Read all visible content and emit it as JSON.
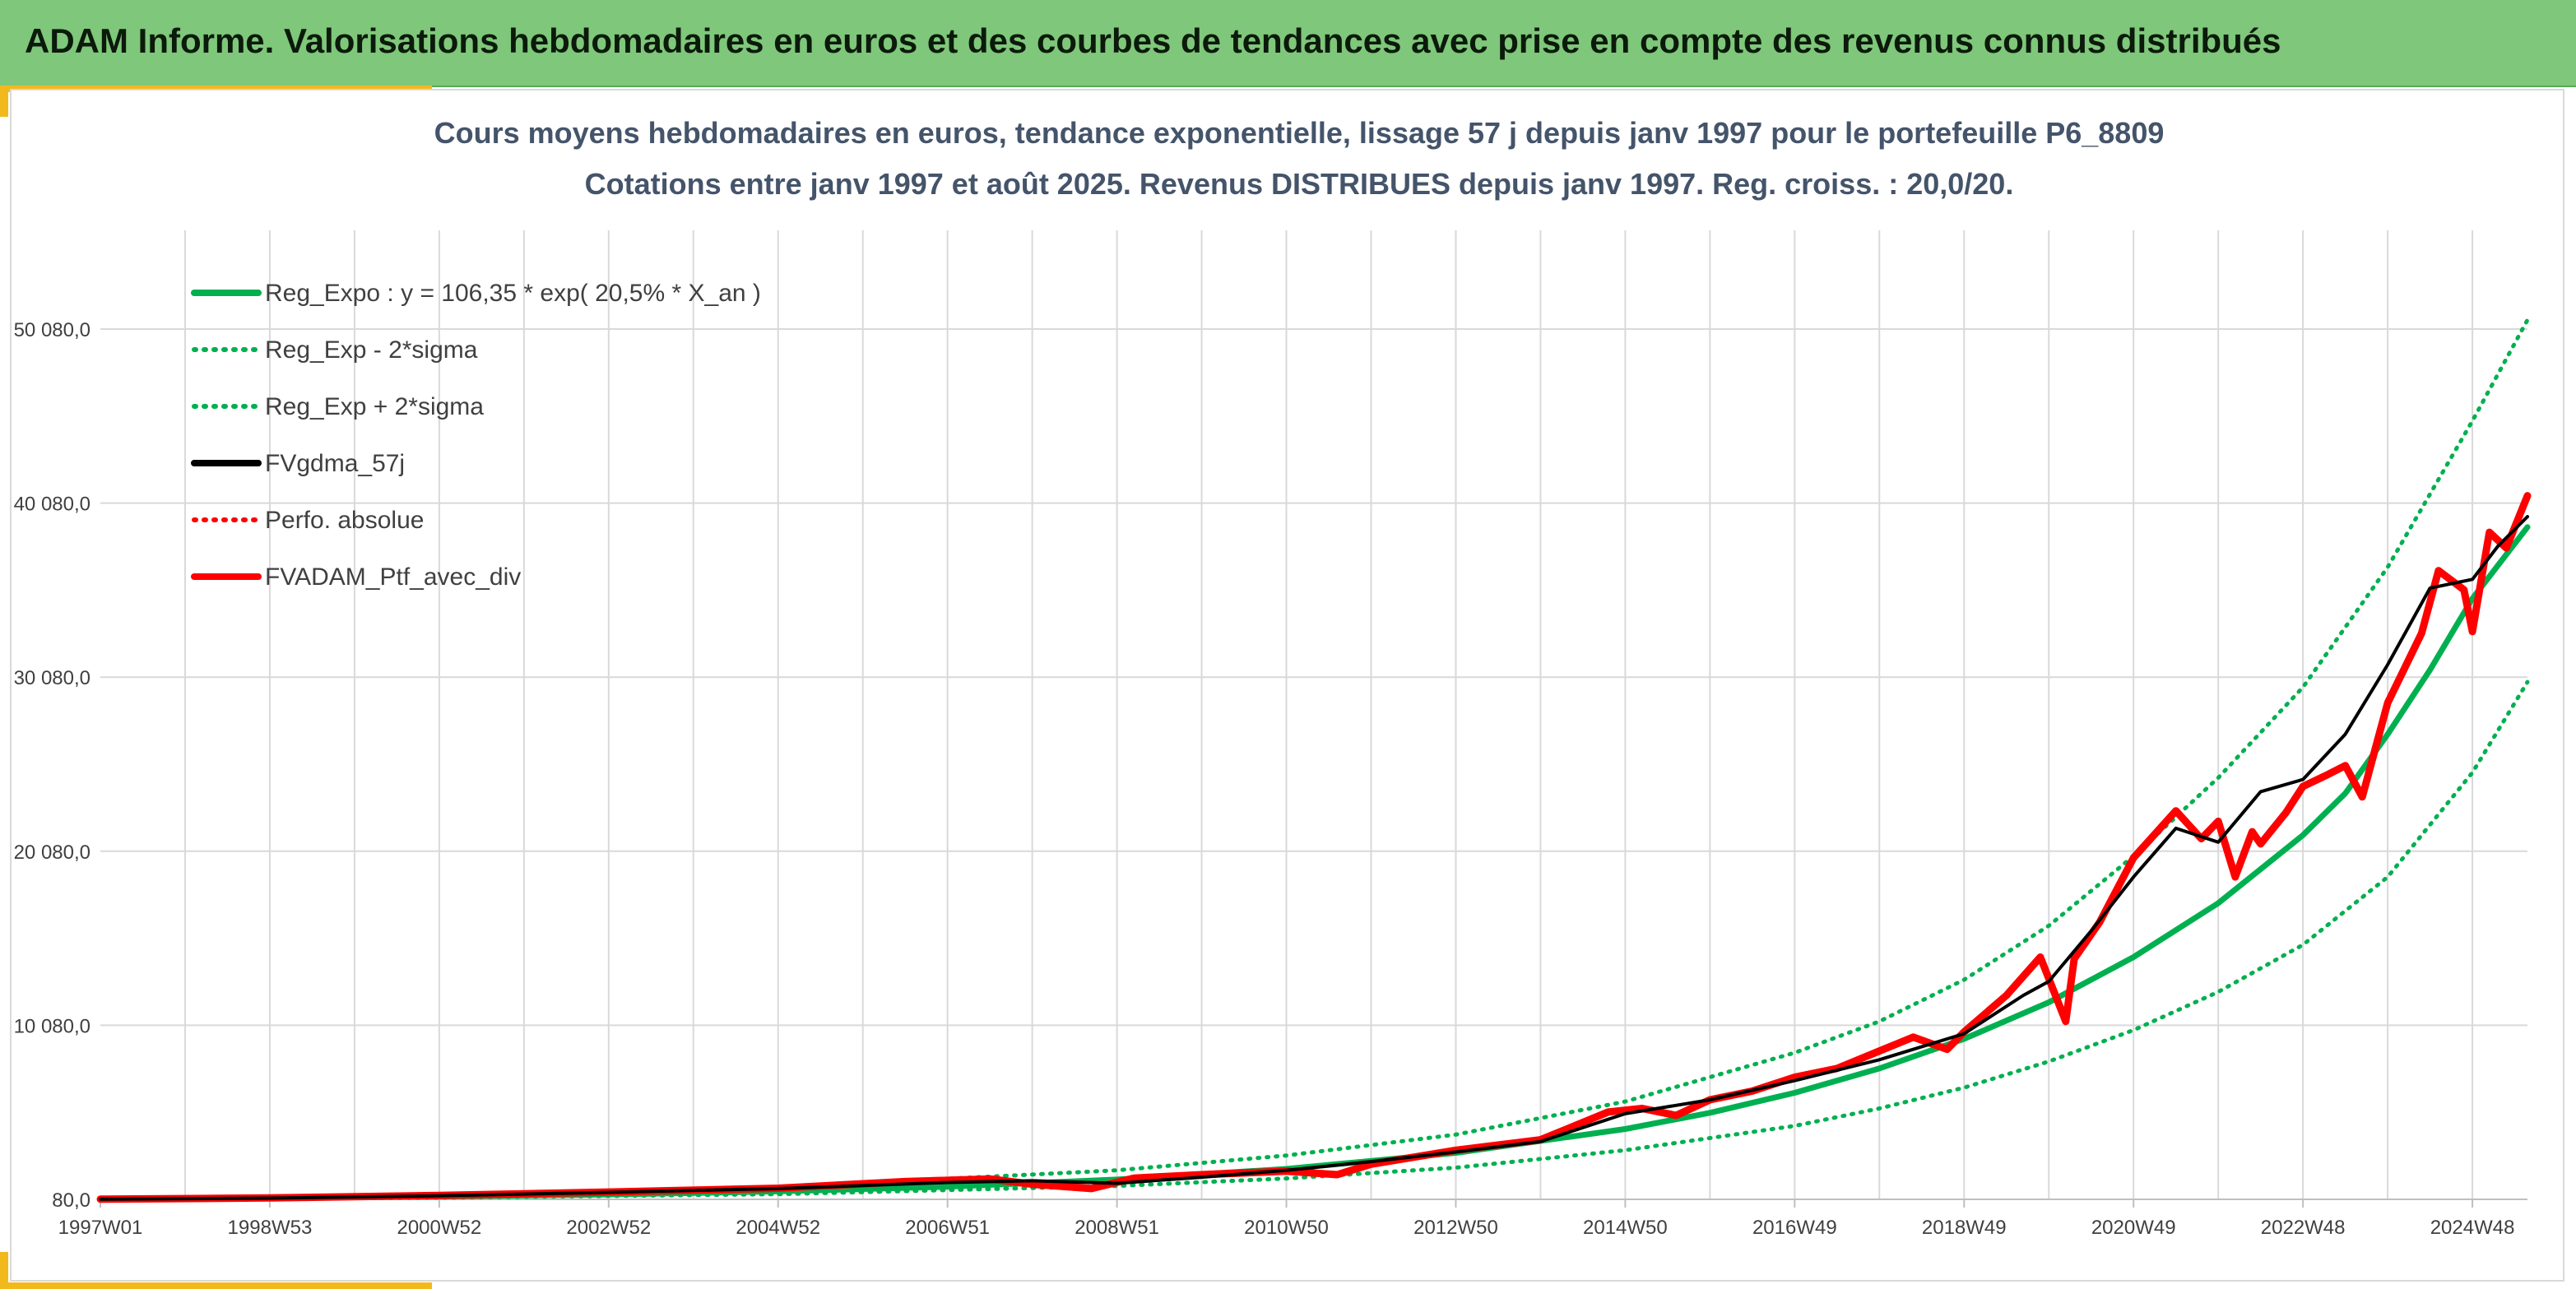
{
  "header": {
    "title": "ADAM Informe. Valorisations hebdomadaires en euros et des courbes de tendances avec prise en compte des revenus connus distribués"
  },
  "colors": {
    "banner": "#7fc77a",
    "accent": "#f2b91d",
    "trend": "#00b050",
    "smooth": "#000000",
    "portfolio": "#ff0000",
    "grid": "#d9d9d9",
    "text": "#404040"
  },
  "chart_data": {
    "type": "line",
    "title": "Cours moyens hebdomadaires en euros, tendance exponentielle, lissage 57 j depuis janv 1997 pour le portefeuille P6_8809",
    "subtitle": "Cotations entre janv 1997 et août 2025. Revenus DISTRIBUES depuis janv 1997. Reg. croiss. : 20,0/20.",
    "xlabel": "",
    "ylabel": "",
    "grid": true,
    "legend_position": "top-left",
    "x_range": [
      1997.0,
      2025.65
    ],
    "ylim": [
      80,
      50080
    ],
    "y_ticks": [
      "80,0",
      "10 080,0",
      "20 080,0",
      "30 080,0",
      "40 080,0",
      "50 080,0"
    ],
    "y_tick_values": [
      80,
      10080,
      20080,
      30080,
      40080,
      50080
    ],
    "x_ticks": [
      "1997W01",
      "1998W53",
      "2000W52",
      "2002W52",
      "2004W52",
      "2006W51",
      "2008W51",
      "2010W50",
      "2012W50",
      "2014W50",
      "2016W49",
      "2018W49",
      "2020W49",
      "2022W48",
      "2024W48"
    ],
    "x_tick_values": [
      1997.0,
      1999.0,
      2001.0,
      2003.0,
      2005.0,
      2007.0,
      2009.0,
      2011.0,
      2013.0,
      2015.0,
      2017.0,
      2019.0,
      2021.0,
      2023.0,
      2025.0
    ],
    "series": [
      {
        "name": "Reg_Expo : y = 106,35 * exp( 20,5% *  X_an )",
        "style": "solid",
        "color": "#00b050",
        "width": 7,
        "x": [
          1997.0,
          1999.0,
          2001.0,
          2003.0,
          2005.0,
          2007.0,
          2009.0,
          2011.0,
          2013.0,
          2015.0,
          2016.0,
          2017.0,
          2018.0,
          2019.0,
          2020.0,
          2021.0,
          2022.0,
          2023.0,
          2023.5,
          2024.0,
          2024.5,
          2025.0,
          2025.65
        ],
        "y": [
          106,
          160,
          240,
          360,
          540,
          810,
          1220,
          1830,
          2750,
          4120,
          5050,
          6200,
          7600,
          9300,
          11400,
          14000,
          17100,
          21000,
          23400,
          26800,
          30500,
          34600,
          38700
        ]
      },
      {
        "name": "Reg_Exp - 2*sigma",
        "style": "dotted",
        "color": "#00b050",
        "width": 5,
        "x": [
          1997.0,
          2001.0,
          2005.0,
          2009.0,
          2011.0,
          2013.0,
          2015.0,
          2017.0,
          2018.0,
          2019.0,
          2020.0,
          2021.0,
          2022.0,
          2023.0,
          2024.0,
          2025.0,
          2025.65
        ],
        "y": [
          80,
          170,
          380,
          850,
          1280,
          1900,
          2900,
          4300,
          5300,
          6500,
          8000,
          9800,
          12000,
          14700,
          18600,
          24600,
          29800
        ]
      },
      {
        "name": "Reg_Exp + 2*sigma",
        "style": "dotted",
        "color": "#00b050",
        "width": 5,
        "x": [
          1997.0,
          2001.0,
          2005.0,
          2009.0,
          2011.0,
          2013.0,
          2015.0,
          2017.0,
          2018.0,
          2019.0,
          2020.0,
          2021.0,
          2022.0,
          2023.0,
          2024.0,
          2025.0,
          2025.65
        ],
        "y": [
          140,
          340,
          780,
          1750,
          2600,
          3800,
          5700,
          8500,
          10300,
          12700,
          15800,
          19800,
          24300,
          29500,
          36400,
          44800,
          50600
        ]
      },
      {
        "name": "FVgdma_57j",
        "style": "solid",
        "color": "#000000",
        "width": 4,
        "x": [
          1997.0,
          1999.0,
          2001.0,
          2003.0,
          2005.0,
          2007.0,
          2008.0,
          2009.0,
          2010.0,
          2011.0,
          2012.0,
          2013.0,
          2014.0,
          2015.0,
          2016.0,
          2017.0,
          2018.0,
          2019.0,
          2019.7,
          2020.0,
          2020.5,
          2021.0,
          2021.5,
          2022.0,
          2022.5,
          2023.0,
          2023.5,
          2024.0,
          2024.5,
          2025.0,
          2025.3,
          2025.65
        ],
        "y": [
          90,
          150,
          290,
          480,
          700,
          1050,
          1150,
          1000,
          1350,
          1750,
          2250,
          2800,
          3400,
          5000,
          5800,
          6900,
          8100,
          9600,
          11800,
          12600,
          15500,
          18600,
          21400,
          20600,
          23500,
          24200,
          26800,
          30800,
          35200,
          35700,
          37600,
          39300
        ]
      },
      {
        "name": "Perfo. absolue",
        "style": "dotted",
        "color": "#ff0000",
        "width": 5,
        "x": [
          1997.0,
          2025.65
        ],
        "y": [
          80,
          80
        ]
      },
      {
        "name": "FVADAM_Ptf_avec_div",
        "style": "solid",
        "color": "#ff0000",
        "width": 9,
        "x": [
          1997.0,
          1999.0,
          2001.0,
          2003.0,
          2005.0,
          2006.5,
          2007.5,
          2008.0,
          2008.7,
          2009.2,
          2010.0,
          2011.0,
          2011.6,
          2012.0,
          2013.0,
          2014.0,
          2014.8,
          2015.2,
          2015.6,
          2016.0,
          2016.5,
          2017.0,
          2017.5,
          2018.0,
          2018.4,
          2018.8,
          2019.0,
          2019.5,
          2019.9,
          2020.2,
          2020.3,
          2020.6,
          2021.0,
          2021.5,
          2021.8,
          2022.0,
          2022.2,
          2022.4,
          2022.5,
          2022.8,
          2023.0,
          2023.3,
          2023.5,
          2023.7,
          2024.0,
          2024.4,
          2024.6,
          2024.9,
          2025.0,
          2025.2,
          2025.4,
          2025.65
        ],
        "y": [
          90,
          160,
          300,
          500,
          720,
          1100,
          1250,
          950,
          700,
          1300,
          1500,
          1700,
          1500,
          2100,
          2900,
          3500,
          5100,
          5300,
          4900,
          5800,
          6300,
          7100,
          7600,
          8600,
          9400,
          8700,
          9700,
          11800,
          14000,
          10300,
          13900,
          16000,
          19700,
          22400,
          20800,
          21800,
          18600,
          21200,
          20500,
          22300,
          23800,
          24500,
          25000,
          23200,
          28600,
          32600,
          36200,
          35100,
          32700,
          38400,
          37500,
          40500
        ]
      }
    ]
  }
}
